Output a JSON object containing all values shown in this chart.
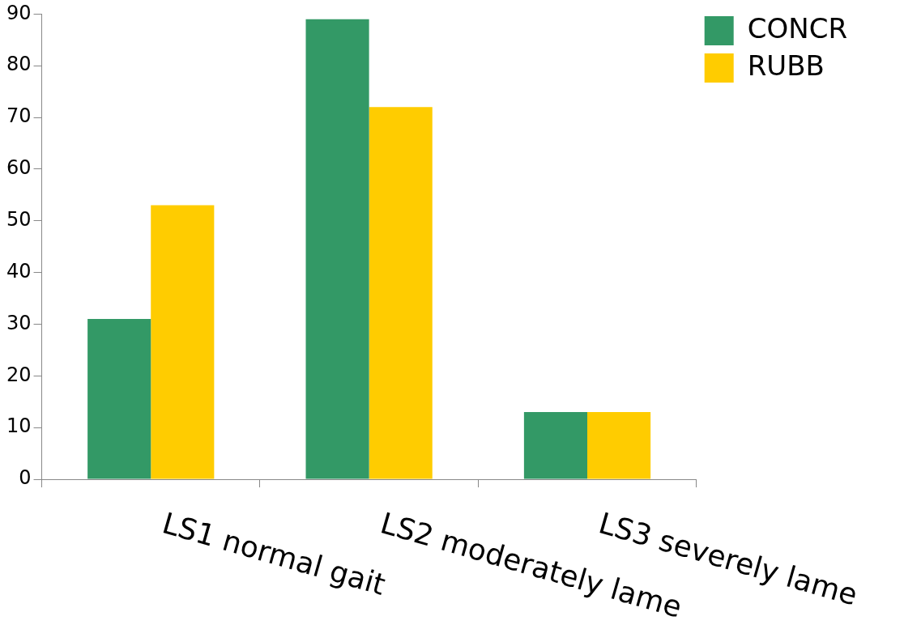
{
  "chart_data": {
    "type": "bar",
    "categories": [
      "LS1 normal gait",
      "LS2 moderately lame",
      "LS3 severely lame"
    ],
    "series": [
      {
        "name": "CONCR",
        "color": "#339966",
        "values": [
          31,
          89,
          13
        ]
      },
      {
        "name": "RUBB",
        "color": "#ffcc00",
        "values": [
          53,
          72,
          13
        ]
      }
    ],
    "ylim": [
      0,
      90
    ],
    "yticks": [
      0,
      10,
      20,
      30,
      40,
      50,
      60,
      70,
      80,
      90
    ],
    "grid": false,
    "legend": "top right"
  }
}
